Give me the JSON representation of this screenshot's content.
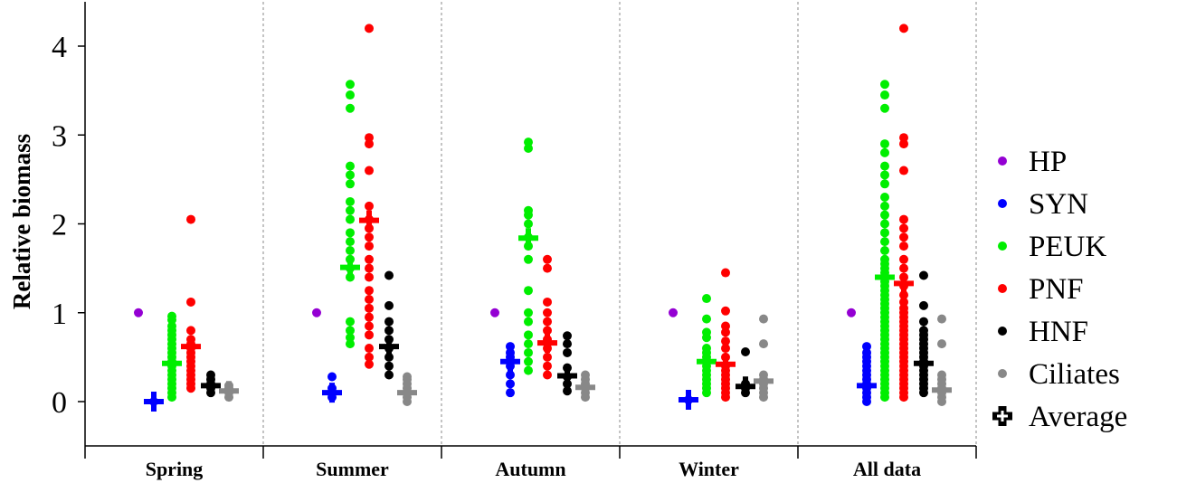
{
  "chart_data": {
    "type": "scatter",
    "title": "",
    "xlabel": "",
    "ylabel": "Relative biomass",
    "ylim": [
      -0.5,
      4.5
    ],
    "yticks": [
      0,
      1,
      2,
      3,
      4
    ],
    "ytick_labels": [
      "0",
      "1",
      "2",
      "3",
      "4"
    ],
    "categories": [
      "Spring",
      "Summer",
      "Autumn",
      "Winter",
      "All data"
    ],
    "grid": false,
    "legend_position": "right",
    "series": [
      {
        "name": "HP",
        "color": "#9400d3",
        "icon": "dot-icon"
      },
      {
        "name": "SYN",
        "color": "#0000ff",
        "icon": "dot-icon"
      },
      {
        "name": "PEUK",
        "color": "#00ee00",
        "icon": "dot-icon"
      },
      {
        "name": "PNF",
        "color": "#ff0000",
        "icon": "dot-icon"
      },
      {
        "name": "HNF",
        "color": "#000000",
        "icon": "dot-icon"
      },
      {
        "name": "Ciliates",
        "color": "#888888",
        "icon": "dot-icon"
      }
    ],
    "average_legend": {
      "name": "Average",
      "icon": "hollow-plus-icon"
    },
    "groups": [
      {
        "category": "Spring",
        "points": {
          "HP": [
            1.0
          ],
          "SYN": [
            0.0
          ],
          "PEUK": [
            0.05,
            0.1,
            0.15,
            0.2,
            0.25,
            0.3,
            0.35,
            0.4,
            0.45,
            0.5,
            0.55,
            0.6,
            0.65,
            0.7,
            0.75,
            0.8,
            0.85,
            0.92,
            0.96
          ],
          "PNF": [
            0.15,
            0.2,
            0.25,
            0.3,
            0.35,
            0.4,
            0.45,
            0.5,
            0.55,
            0.6,
            0.65,
            0.7,
            0.8,
            1.12,
            2.05
          ],
          "HNF": [
            0.1,
            0.15,
            0.2,
            0.25,
            0.3
          ],
          "Ciliates": [
            0.05,
            0.1,
            0.15,
            0.18
          ]
        },
        "averages": {
          "SYN": 0.0,
          "PEUK": 0.43,
          "PNF": 0.62,
          "HNF": 0.18,
          "Ciliates": 0.12
        }
      },
      {
        "category": "Summer",
        "points": {
          "HP": [
            1.0
          ],
          "SYN": [
            0.05,
            0.1,
            0.15,
            0.28
          ],
          "PEUK": [
            0.65,
            0.72,
            0.8,
            0.9,
            1.4,
            1.5,
            1.6,
            1.7,
            1.8,
            1.9,
            2.05,
            2.15,
            2.25,
            2.45,
            2.55,
            2.65,
            3.3,
            3.45,
            3.57
          ],
          "PNF": [
            0.42,
            0.5,
            0.6,
            0.75,
            0.85,
            0.95,
            1.05,
            1.15,
            1.25,
            1.4,
            1.5,
            1.6,
            1.75,
            1.85,
            1.95,
            2.05,
            2.2,
            2.6,
            2.9,
            2.97,
            4.2
          ],
          "HNF": [
            0.3,
            0.4,
            0.5,
            0.6,
            0.7,
            0.8,
            0.9,
            1.08,
            1.42
          ],
          "Ciliates": [
            0.0,
            0.05,
            0.1,
            0.15,
            0.2,
            0.25,
            0.28
          ]
        },
        "averages": {
          "SYN": 0.1,
          "PEUK": 1.51,
          "PNF": 2.04,
          "HNF": 0.62,
          "Ciliates": 0.1
        }
      },
      {
        "category": "Autumn",
        "points": {
          "HP": [
            1.0
          ],
          "SYN": [
            0.1,
            0.2,
            0.3,
            0.4,
            0.5,
            0.55,
            0.62
          ],
          "PEUK": [
            0.35,
            0.45,
            0.55,
            0.65,
            0.75,
            0.9,
            1.0,
            1.25,
            1.6,
            1.75,
            1.85,
            2.0,
            2.1,
            2.15,
            2.85,
            2.92
          ],
          "PNF": [
            0.3,
            0.4,
            0.5,
            0.6,
            0.7,
            0.8,
            0.9,
            1.0,
            1.12,
            1.5,
            1.6
          ],
          "HNF": [
            0.12,
            0.2,
            0.28,
            0.38,
            0.55,
            0.65,
            0.74
          ],
          "Ciliates": [
            0.05,
            0.1,
            0.15,
            0.2,
            0.25,
            0.3
          ]
        },
        "averages": {
          "SYN": 0.45,
          "PEUK": 1.84,
          "PNF": 0.66,
          "HNF": 0.29,
          "Ciliates": 0.16
        }
      },
      {
        "category": "Winter",
        "points": {
          "HP": [
            1.0
          ],
          "SYN": [
            0.02
          ],
          "PEUK": [
            0.1,
            0.15,
            0.2,
            0.25,
            0.3,
            0.35,
            0.4,
            0.45,
            0.5,
            0.55,
            0.6,
            0.72,
            0.78,
            0.93,
            1.16
          ],
          "PNF": [
            0.05,
            0.1,
            0.15,
            0.2,
            0.25,
            0.3,
            0.35,
            0.4,
            0.5,
            0.6,
            0.68,
            0.78,
            0.85,
            1.02,
            1.45
          ],
          "HNF": [
            0.1,
            0.15,
            0.2,
            0.56
          ],
          "Ciliates": [
            0.05,
            0.1,
            0.15,
            0.2,
            0.25,
            0.3,
            0.65,
            0.93
          ]
        },
        "averages": {
          "SYN": 0.02,
          "PEUK": 0.45,
          "PNF": 0.42,
          "HNF": 0.17,
          "Ciliates": 0.23
        }
      },
      {
        "category": "All data",
        "points": {
          "HP": [
            1.0
          ],
          "SYN": [
            0.0,
            0.05,
            0.1,
            0.15,
            0.2,
            0.25,
            0.3,
            0.35,
            0.4,
            0.45,
            0.5,
            0.55,
            0.62
          ],
          "PEUK": [
            0.05,
            0.1,
            0.15,
            0.2,
            0.25,
            0.3,
            0.35,
            0.4,
            0.45,
            0.5,
            0.55,
            0.6,
            0.65,
            0.7,
            0.75,
            0.8,
            0.85,
            0.9,
            0.95,
            1.0,
            1.05,
            1.1,
            1.15,
            1.2,
            1.25,
            1.3,
            1.35,
            1.4,
            1.45,
            1.5,
            1.55,
            1.6,
            1.7,
            1.8,
            1.9,
            2.0,
            2.1,
            2.2,
            2.3,
            2.45,
            2.55,
            2.65,
            2.8,
            2.9,
            3.3,
            3.45,
            3.57
          ],
          "PNF": [
            0.05,
            0.1,
            0.15,
            0.2,
            0.25,
            0.3,
            0.35,
            0.4,
            0.45,
            0.5,
            0.55,
            0.6,
            0.65,
            0.7,
            0.75,
            0.8,
            0.85,
            0.9,
            0.95,
            1.0,
            1.05,
            1.12,
            1.2,
            1.3,
            1.4,
            1.5,
            1.6,
            1.75,
            1.85,
            1.95,
            2.05,
            2.6,
            2.9,
            2.97,
            4.2
          ],
          "HNF": [
            0.1,
            0.15,
            0.2,
            0.25,
            0.3,
            0.35,
            0.4,
            0.45,
            0.5,
            0.55,
            0.6,
            0.65,
            0.7,
            0.75,
            0.8,
            0.9,
            1.08,
            1.42
          ],
          "Ciliates": [
            0.0,
            0.05,
            0.1,
            0.15,
            0.2,
            0.25,
            0.3,
            0.65,
            0.93
          ]
        },
        "averages": {
          "SYN": 0.18,
          "PEUK": 1.4,
          "PNF": 1.33,
          "HNF": 0.43,
          "Ciliates": 0.13
        }
      }
    ]
  }
}
